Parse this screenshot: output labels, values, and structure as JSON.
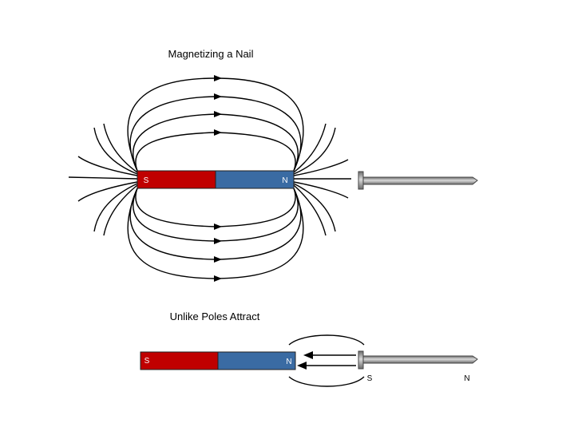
{
  "colors": {
    "south_pole": "#c00000",
    "north_pole": "#3a6ba3",
    "field_line": "#000000",
    "nail_light": "#d9d9d9",
    "nail_dark": "#6b6b6b"
  },
  "top_diagram": {
    "title": "Magnetizing a Nail",
    "magnet": {
      "south_label": "S",
      "north_label": "N"
    },
    "nail_icon": "nail-icon"
  },
  "bottom_diagram": {
    "title": "Unlike Poles Attract",
    "magnet": {
      "south_label": "S",
      "north_label": "N"
    },
    "nail_pole_labels": {
      "left": "S",
      "right": "N"
    },
    "nail_icon": "nail-icon"
  }
}
